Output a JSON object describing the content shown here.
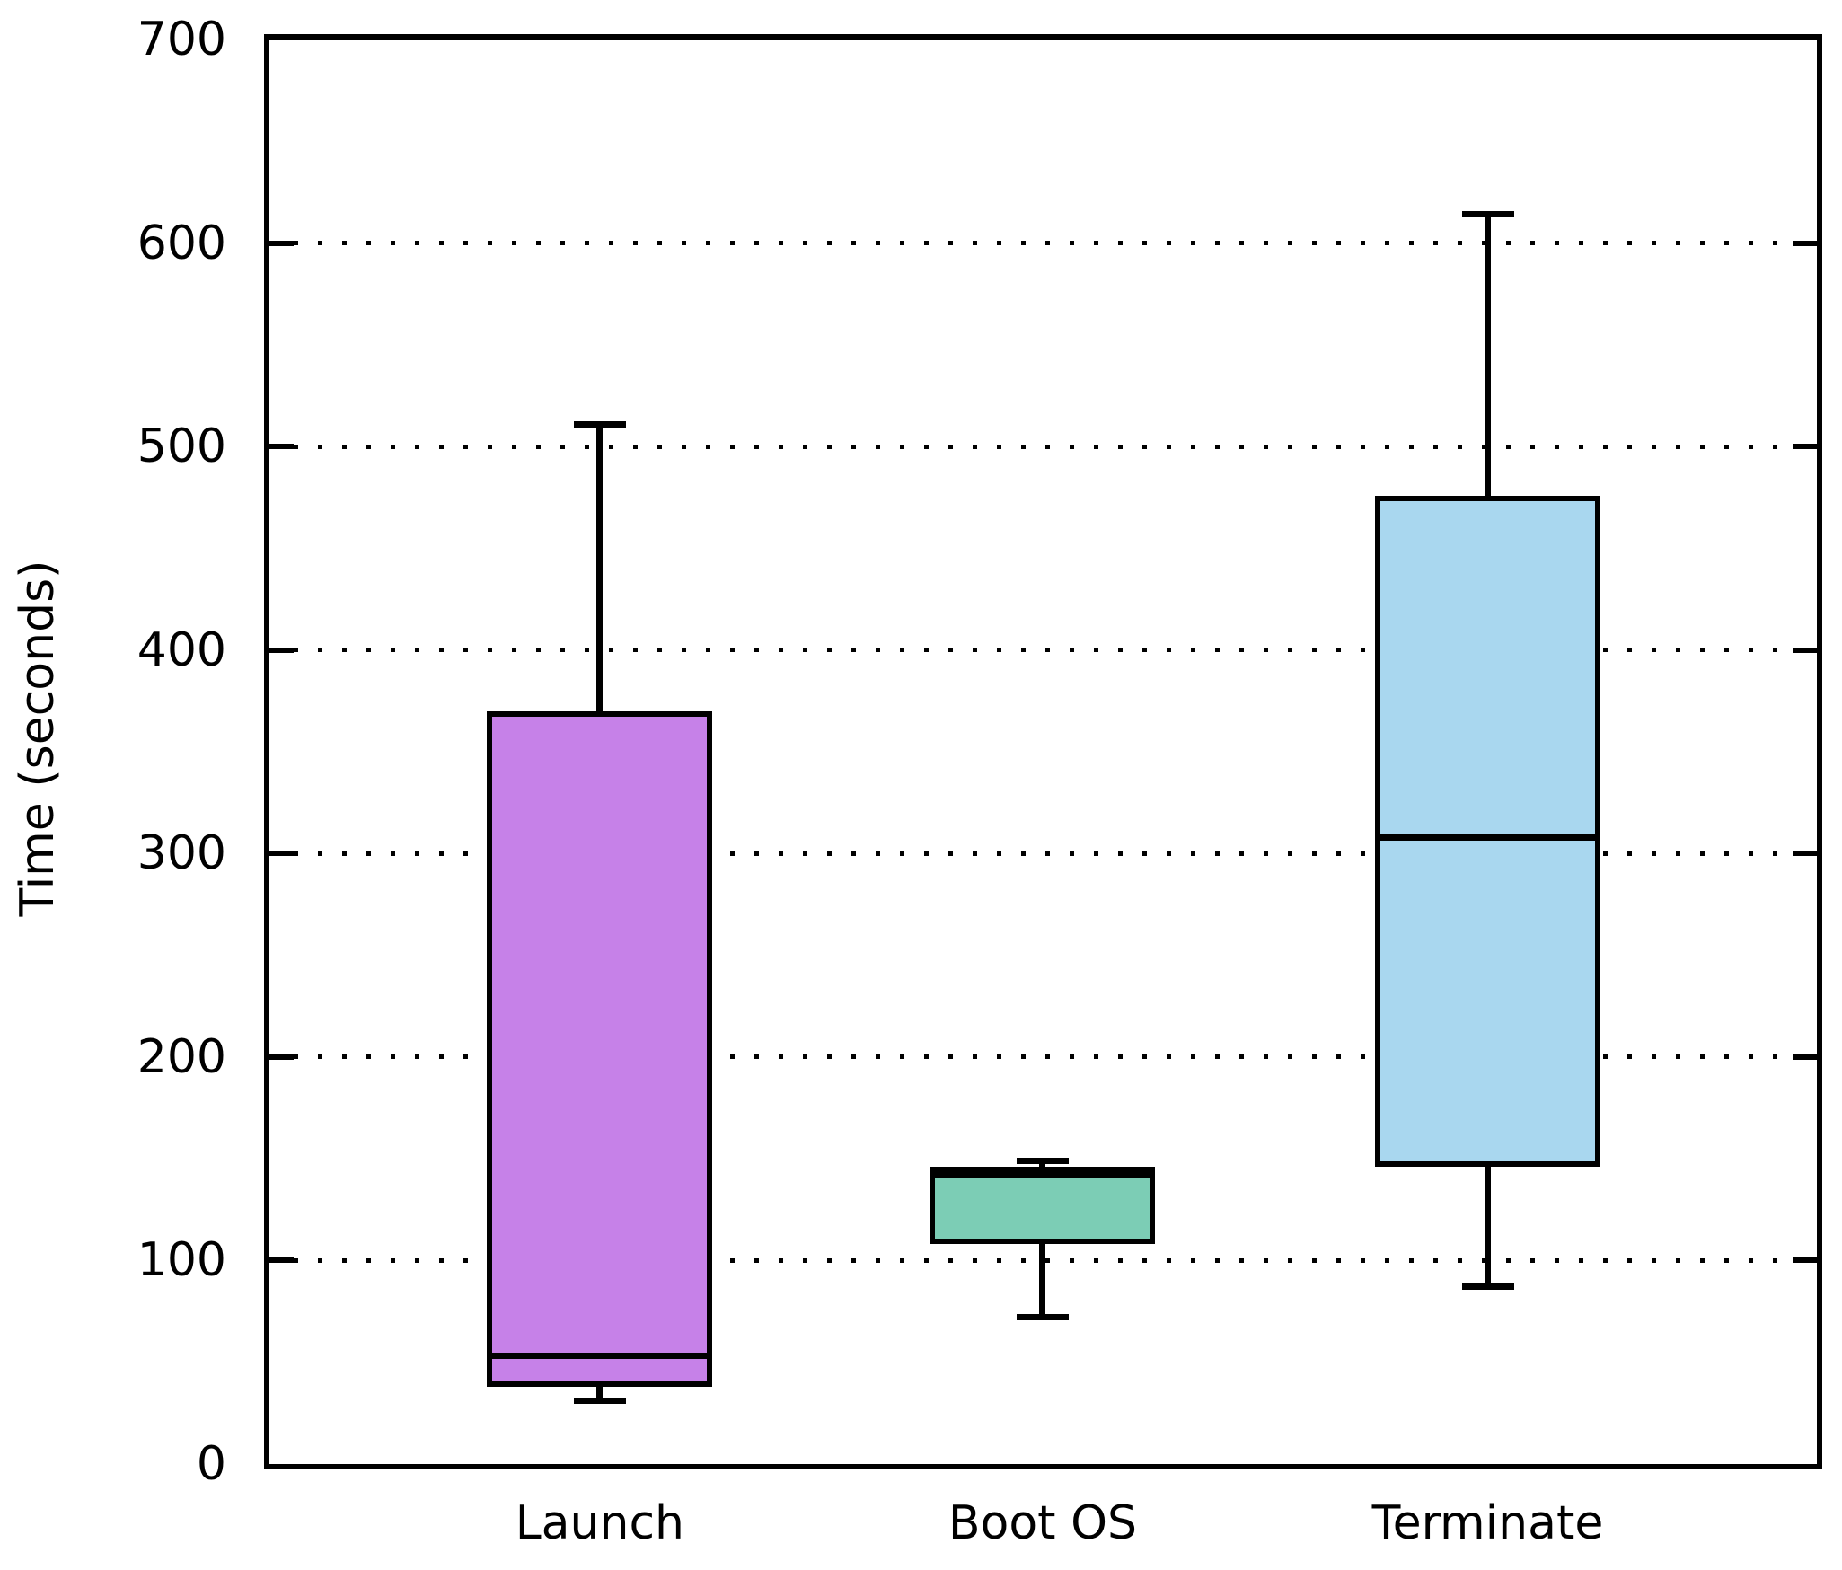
{
  "chart_data": {
    "type": "boxplot",
    "title": "",
    "ylabel": "Time (seconds)",
    "xlabel": "",
    "ylim": [
      0,
      700
    ],
    "yticks": [
      0,
      100,
      200,
      300,
      400,
      500,
      600,
      700
    ],
    "grid": "horizontal dotted gridlines at 100-600, ticks on left and right axes, full box frame",
    "legend_position": "none",
    "categories": [
      "Launch",
      "Boot OS",
      "Terminate"
    ],
    "series": [
      {
        "name": "Launch",
        "min": 31,
        "q1": 38,
        "median": 53,
        "q3": 370,
        "max": 511,
        "fill_color": "#c681e8"
      },
      {
        "name": "Boot OS",
        "min": 72,
        "q1": 108,
        "median": 142,
        "q3": 146,
        "max": 149,
        "fill_color": "#7ccdb5"
      },
      {
        "name": "Terminate",
        "min": 87,
        "q1": 146,
        "median": 308,
        "q3": 476,
        "max": 614,
        "fill_color": "#a9d7ef"
      }
    ],
    "colors": {
      "box_border": "#000000",
      "whisker": "#000000",
      "median": "#000000",
      "grid": "#000000",
      "background": "#ffffff"
    }
  }
}
